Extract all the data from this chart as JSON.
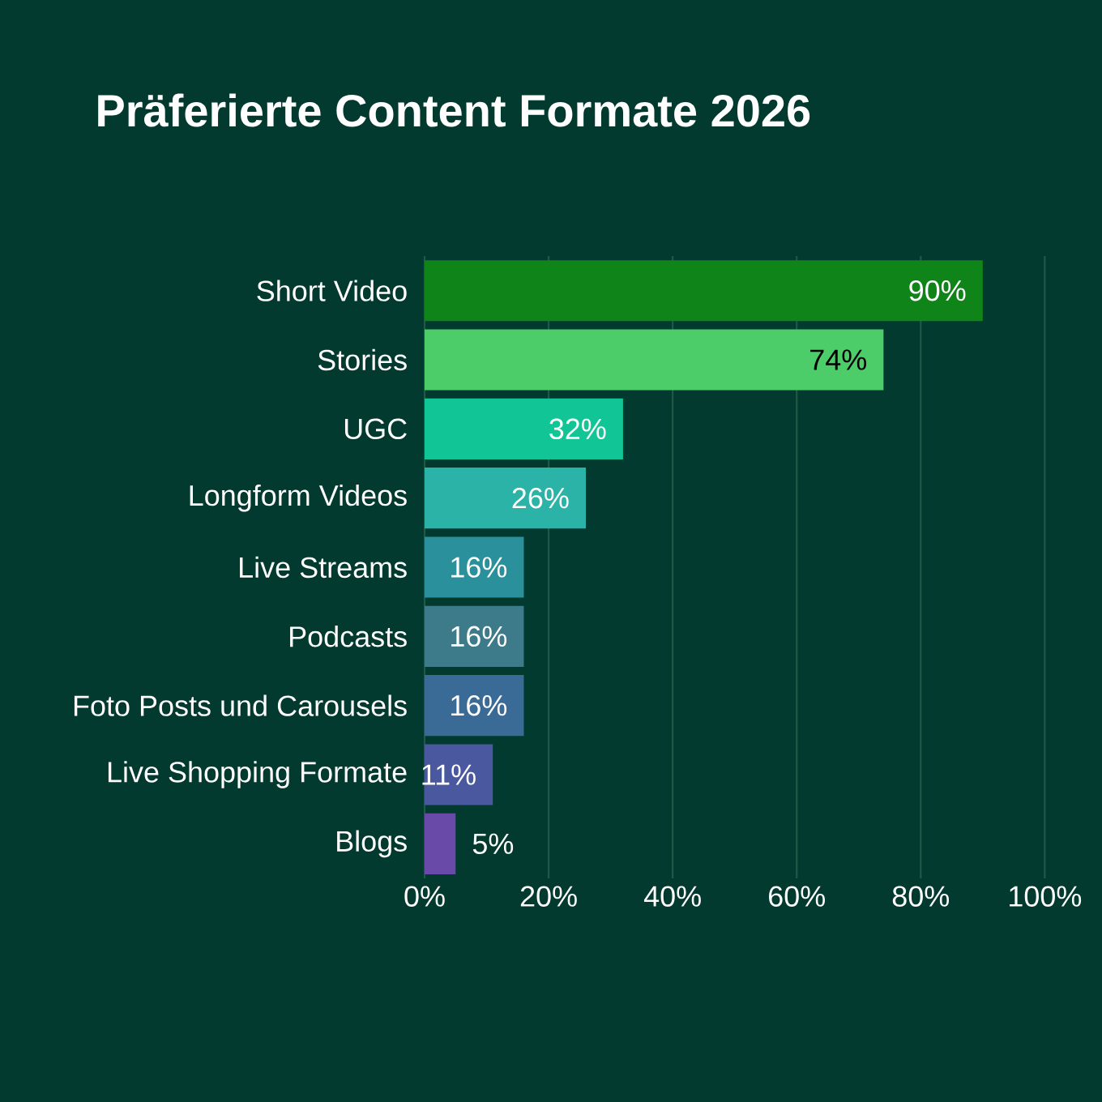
{
  "chart_data": {
    "type": "bar",
    "orientation": "horizontal",
    "title": "Präferierte Content Formate 2026",
    "categories": [
      "Short Video",
      "Stories",
      "UGC",
      "Longform Videos",
      "Live Streams",
      "Podcasts",
      "Foto Posts und Carousels",
      "Live Shopping Formate",
      "Blogs"
    ],
    "values": [
      90,
      74,
      32,
      26,
      16,
      16,
      16,
      11,
      5
    ],
    "value_labels": [
      "90%",
      "74%",
      "32%",
      "26%",
      "16%",
      "16%",
      "16%",
      "11%",
      "5%"
    ],
    "colors": [
      "#0f8418",
      "#4ccd6a",
      "#12c596",
      "#2ab3a6",
      "#2a919c",
      "#3d7a8a",
      "#3a6a96",
      "#4a58a0",
      "#6a4aa8"
    ],
    "xlim": [
      0,
      100
    ],
    "xticks": [
      {
        "value": 0,
        "label": "0%"
      },
      {
        "value": 20,
        "label": "20%"
      },
      {
        "value": 40,
        "label": "40%"
      },
      {
        "value": 60,
        "label": "60%"
      },
      {
        "value": 80,
        "label": "80%"
      },
      {
        "value": 100,
        "label": "100%"
      }
    ],
    "grid": "x"
  }
}
